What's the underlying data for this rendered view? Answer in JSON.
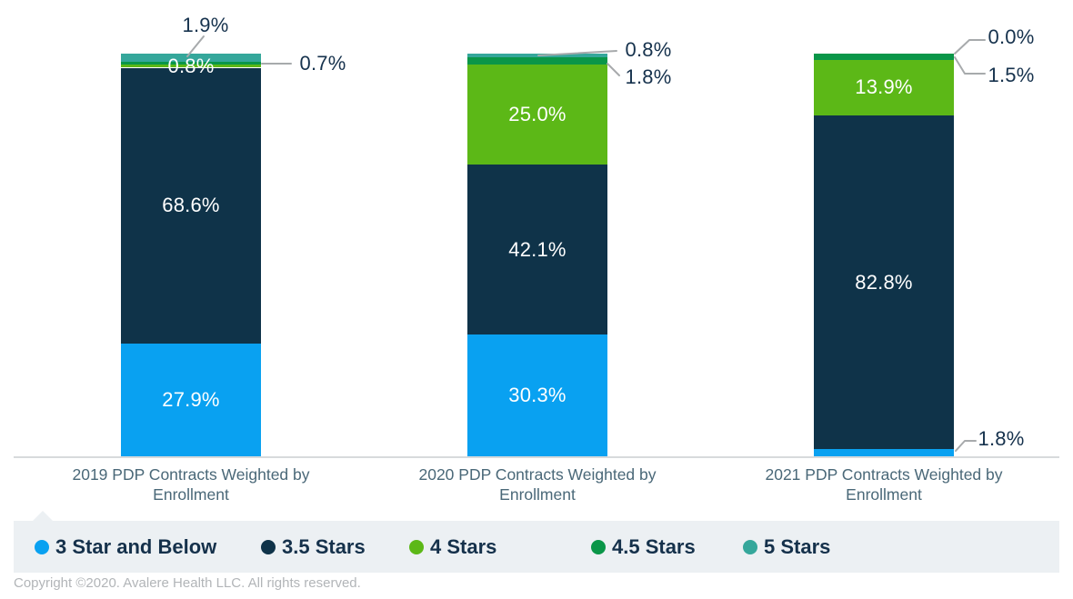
{
  "chart_data": {
    "type": "bar",
    "stacked": true,
    "title": "",
    "xlabel": "",
    "ylabel": "",
    "ylim": [
      0,
      100
    ],
    "grid": false,
    "legend_position": "bottom",
    "value_suffix": "%",
    "categories": [
      "2019 PDP Contracts Weighted by Enrollment",
      "2020 PDP Contracts Weighted by Enrollment",
      "2021 PDP Contracts Weighted by Enrollment"
    ],
    "series": [
      {
        "name": "3 Star and Below",
        "color": "#09A1F1",
        "values": [
          27.9,
          30.3,
          1.8
        ]
      },
      {
        "name": "3.5 Stars",
        "color": "#0F3349",
        "values": [
          68.6,
          42.1,
          82.8
        ]
      },
      {
        "name": "4 Stars",
        "color": "#5CB817",
        "values": [
          0.8,
          25.0,
          13.9
        ]
      },
      {
        "name": "4.5 Stars",
        "color": "#0A9648",
        "values": [
          0.7,
          1.8,
          1.5
        ]
      },
      {
        "name": "5 Stars",
        "color": "#35A79B",
        "values": [
          1.9,
          0.8,
          0.0
        ]
      }
    ],
    "colors": {
      "callout_text": "#16324D",
      "leader_line": "#A7AAAC",
      "axis_label": "#4A6878",
      "legend_background": "#ECF0F3",
      "baseline": "#D7DADC"
    }
  },
  "footer": {
    "copyright": "Copyright ©2020. Avalere Health LLC. All rights reserved."
  }
}
